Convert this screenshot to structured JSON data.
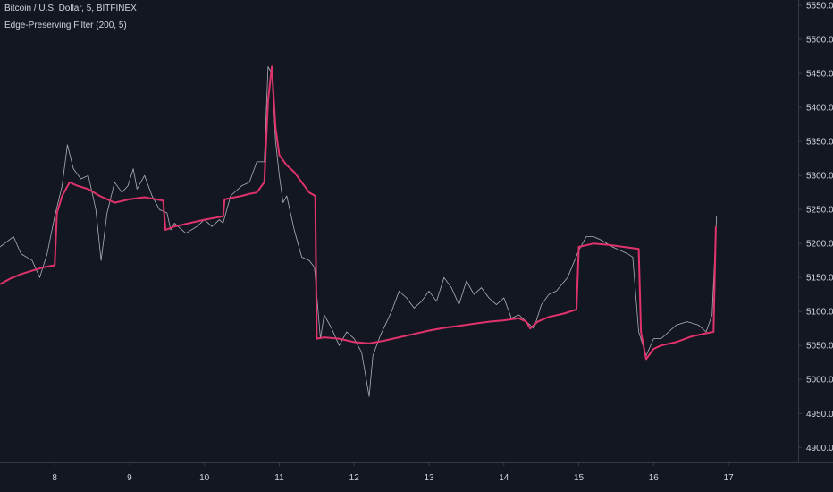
{
  "legend": {
    "symbol_line": "Bitcoin / U.S. Dollar, 5, BITFINEX",
    "indicator_line": "Edge-Preserving Filter (200, 5)"
  },
  "colors": {
    "background": "#131722",
    "axis_text": "#d1d4dc",
    "price_series": "#c9cbd1",
    "filter_series": "#e0336b",
    "axis_line": "#363a45"
  },
  "chart_data": {
    "type": "line",
    "x_axis": {
      "type": "day-of-month",
      "range": [
        7.27,
        17.93
      ],
      "ticks": [
        "8",
        "9",
        "10",
        "11",
        "12",
        "13",
        "14",
        "15",
        "16",
        "17"
      ]
    },
    "y_axis": {
      "position": "right",
      "range": [
        4878,
        5558
      ],
      "ticks": [
        "5550.0",
        "5500.0",
        "5450.0",
        "5400.0",
        "5350.0",
        "5300.0",
        "5250.0",
        "5200.0",
        "5150.0",
        "5100.0",
        "5050.0",
        "5000.0",
        "4950.0",
        "4900.0"
      ]
    },
    "grid": false,
    "series": [
      {
        "note": "price (BTC/USD 5-min close, white)",
        "points": [
          [
            7.27,
            5195
          ],
          [
            7.45,
            5210
          ],
          [
            7.55,
            5185
          ],
          [
            7.7,
            5175
          ],
          [
            7.8,
            5150
          ],
          [
            7.9,
            5185
          ],
          [
            8.0,
            5240
          ],
          [
            8.1,
            5285
          ],
          [
            8.17,
            5345
          ],
          [
            8.25,
            5310
          ],
          [
            8.35,
            5295
          ],
          [
            8.45,
            5300
          ],
          [
            8.55,
            5250
          ],
          [
            8.62,
            5175
          ],
          [
            8.7,
            5245
          ],
          [
            8.8,
            5290
          ],
          [
            8.9,
            5275
          ],
          [
            8.98,
            5285
          ],
          [
            9.05,
            5310
          ],
          [
            9.1,
            5280
          ],
          [
            9.2,
            5300
          ],
          [
            9.3,
            5270
          ],
          [
            9.4,
            5250
          ],
          [
            9.5,
            5245
          ],
          [
            9.55,
            5220
          ],
          [
            9.6,
            5230
          ],
          [
            9.75,
            5215
          ],
          [
            9.9,
            5225
          ],
          [
            10.0,
            5235
          ],
          [
            10.1,
            5225
          ],
          [
            10.2,
            5235
          ],
          [
            10.25,
            5230
          ],
          [
            10.35,
            5270
          ],
          [
            10.5,
            5285
          ],
          [
            10.6,
            5290
          ],
          [
            10.7,
            5320
          ],
          [
            10.8,
            5320
          ],
          [
            10.85,
            5460
          ],
          [
            10.9,
            5450
          ],
          [
            10.95,
            5350
          ],
          [
            11.0,
            5300
          ],
          [
            11.05,
            5260
          ],
          [
            11.1,
            5270
          ],
          [
            11.2,
            5220
          ],
          [
            11.3,
            5180
          ],
          [
            11.4,
            5175
          ],
          [
            11.47,
            5165
          ],
          [
            11.55,
            5060
          ],
          [
            11.6,
            5095
          ],
          [
            11.7,
            5075
          ],
          [
            11.8,
            5050
          ],
          [
            11.9,
            5070
          ],
          [
            12.0,
            5060
          ],
          [
            12.1,
            5040
          ],
          [
            12.2,
            4975
          ],
          [
            12.25,
            5035
          ],
          [
            12.35,
            5065
          ],
          [
            12.5,
            5100
          ],
          [
            12.6,
            5130
          ],
          [
            12.7,
            5120
          ],
          [
            12.8,
            5105
          ],
          [
            12.9,
            5115
          ],
          [
            13.0,
            5130
          ],
          [
            13.1,
            5115
          ],
          [
            13.2,
            5150
          ],
          [
            13.3,
            5135
          ],
          [
            13.4,
            5110
          ],
          [
            13.5,
            5145
          ],
          [
            13.6,
            5125
          ],
          [
            13.7,
            5135
          ],
          [
            13.8,
            5120
          ],
          [
            13.9,
            5110
          ],
          [
            14.0,
            5120
          ],
          [
            14.1,
            5090
          ],
          [
            14.2,
            5095
          ],
          [
            14.3,
            5085
          ],
          [
            14.4,
            5075
          ],
          [
            14.5,
            5110
          ],
          [
            14.6,
            5125
          ],
          [
            14.7,
            5130
          ],
          [
            14.85,
            5150
          ],
          [
            15.0,
            5190
          ],
          [
            15.1,
            5210
          ],
          [
            15.2,
            5210
          ],
          [
            15.3,
            5205
          ],
          [
            15.45,
            5195
          ],
          [
            15.55,
            5190
          ],
          [
            15.65,
            5185
          ],
          [
            15.72,
            5180
          ],
          [
            15.8,
            5070
          ],
          [
            15.9,
            5035
          ],
          [
            16.0,
            5060
          ],
          [
            16.1,
            5060
          ],
          [
            16.2,
            5070
          ],
          [
            16.3,
            5080
          ],
          [
            16.45,
            5085
          ],
          [
            16.6,
            5080
          ],
          [
            16.7,
            5070
          ],
          [
            16.78,
            5095
          ],
          [
            16.84,
            5240
          ]
        ]
      },
      {
        "note": "Edge-Preserving Filter (pink)",
        "points": [
          [
            7.27,
            5140
          ],
          [
            7.4,
            5148
          ],
          [
            7.55,
            5155
          ],
          [
            7.7,
            5160
          ],
          [
            7.85,
            5165
          ],
          [
            8.0,
            5168
          ],
          [
            8.03,
            5245
          ],
          [
            8.1,
            5270
          ],
          [
            8.2,
            5290
          ],
          [
            8.3,
            5285
          ],
          [
            8.45,
            5280
          ],
          [
            8.6,
            5270
          ],
          [
            8.8,
            5260
          ],
          [
            9.0,
            5265
          ],
          [
            9.2,
            5268
          ],
          [
            9.45,
            5263
          ],
          [
            9.48,
            5220
          ],
          [
            9.6,
            5225
          ],
          [
            9.8,
            5230
          ],
          [
            10.0,
            5235
          ],
          [
            10.25,
            5240
          ],
          [
            10.27,
            5265
          ],
          [
            10.5,
            5270
          ],
          [
            10.6,
            5273
          ],
          [
            10.7,
            5275
          ],
          [
            10.8,
            5290
          ],
          [
            10.85,
            5410
          ],
          [
            10.9,
            5460
          ],
          [
            10.95,
            5370
          ],
          [
            11.0,
            5330
          ],
          [
            11.1,
            5315
          ],
          [
            11.2,
            5305
          ],
          [
            11.3,
            5290
          ],
          [
            11.4,
            5275
          ],
          [
            11.48,
            5270
          ],
          [
            11.5,
            5060
          ],
          [
            11.6,
            5062
          ],
          [
            11.8,
            5060
          ],
          [
            12.0,
            5055
          ],
          [
            12.2,
            5053
          ],
          [
            12.4,
            5057
          ],
          [
            12.6,
            5062
          ],
          [
            12.8,
            5067
          ],
          [
            13.0,
            5072
          ],
          [
            13.2,
            5076
          ],
          [
            13.4,
            5079
          ],
          [
            13.6,
            5082
          ],
          [
            13.8,
            5085
          ],
          [
            14.0,
            5087
          ],
          [
            14.2,
            5090
          ],
          [
            14.3,
            5085
          ],
          [
            14.35,
            5075
          ],
          [
            14.45,
            5085
          ],
          [
            14.6,
            5092
          ],
          [
            14.8,
            5097
          ],
          [
            14.97,
            5103
          ],
          [
            15.0,
            5195
          ],
          [
            15.2,
            5200
          ],
          [
            15.4,
            5198
          ],
          [
            15.6,
            5195
          ],
          [
            15.8,
            5192
          ],
          [
            15.83,
            5070
          ],
          [
            15.9,
            5030
          ],
          [
            16.0,
            5045
          ],
          [
            16.1,
            5050
          ],
          [
            16.3,
            5055
          ],
          [
            16.5,
            5063
          ],
          [
            16.7,
            5068
          ],
          [
            16.8,
            5070
          ],
          [
            16.83,
            5225
          ]
        ]
      }
    ]
  }
}
